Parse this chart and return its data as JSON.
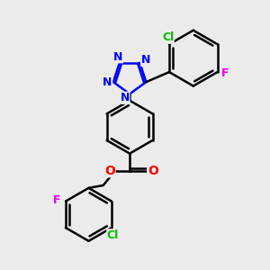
{
  "background_color": "#ebebeb",
  "bond_color": "#000000",
  "bond_width": 1.8,
  "atom_colors": {
    "N": "#0000ff",
    "Cl": "#00bb00",
    "F": "#ee00ee",
    "O": "#ff0000",
    "C": "#000000"
  },
  "figsize": [
    3.0,
    3.0
  ],
  "dpi": 100,
  "xlim": [
    0,
    10
  ],
  "ylim": [
    0,
    10
  ]
}
